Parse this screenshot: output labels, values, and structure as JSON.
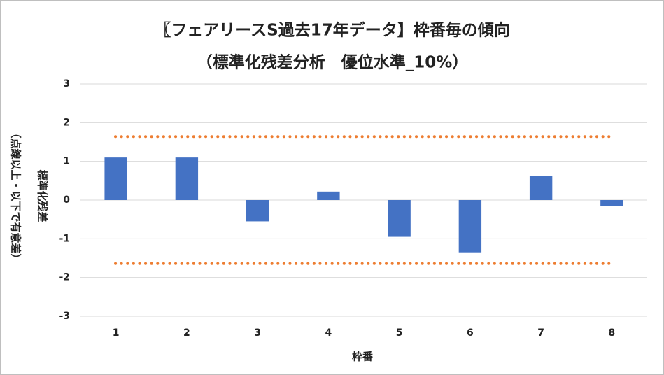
{
  "chart_data": {
    "type": "bar",
    "title": "〖フェアリースS過去17年データ】枠番毎の傾向",
    "subtitle": "（標準化残差分析　優位水準_10%）",
    "x_label": "枠番",
    "y_label": [
      "標準化残差",
      "（点線以上・以下で有意差）"
    ],
    "categories": [
      "1",
      "2",
      "3",
      "4",
      "5",
      "6",
      "7",
      "8"
    ],
    "values": [
      1.1,
      1.1,
      -0.55,
      0.22,
      -0.95,
      -1.35,
      0.62,
      -0.15
    ],
    "color": "#4472c4",
    "reference_lines": [
      1.64,
      -1.64
    ],
    "reference_color": "#ed7d31",
    "ylim": [
      -3,
      3
    ],
    "yticks": [
      -3,
      -2,
      -1,
      0,
      1,
      2,
      3
    ],
    "grid": true
  }
}
